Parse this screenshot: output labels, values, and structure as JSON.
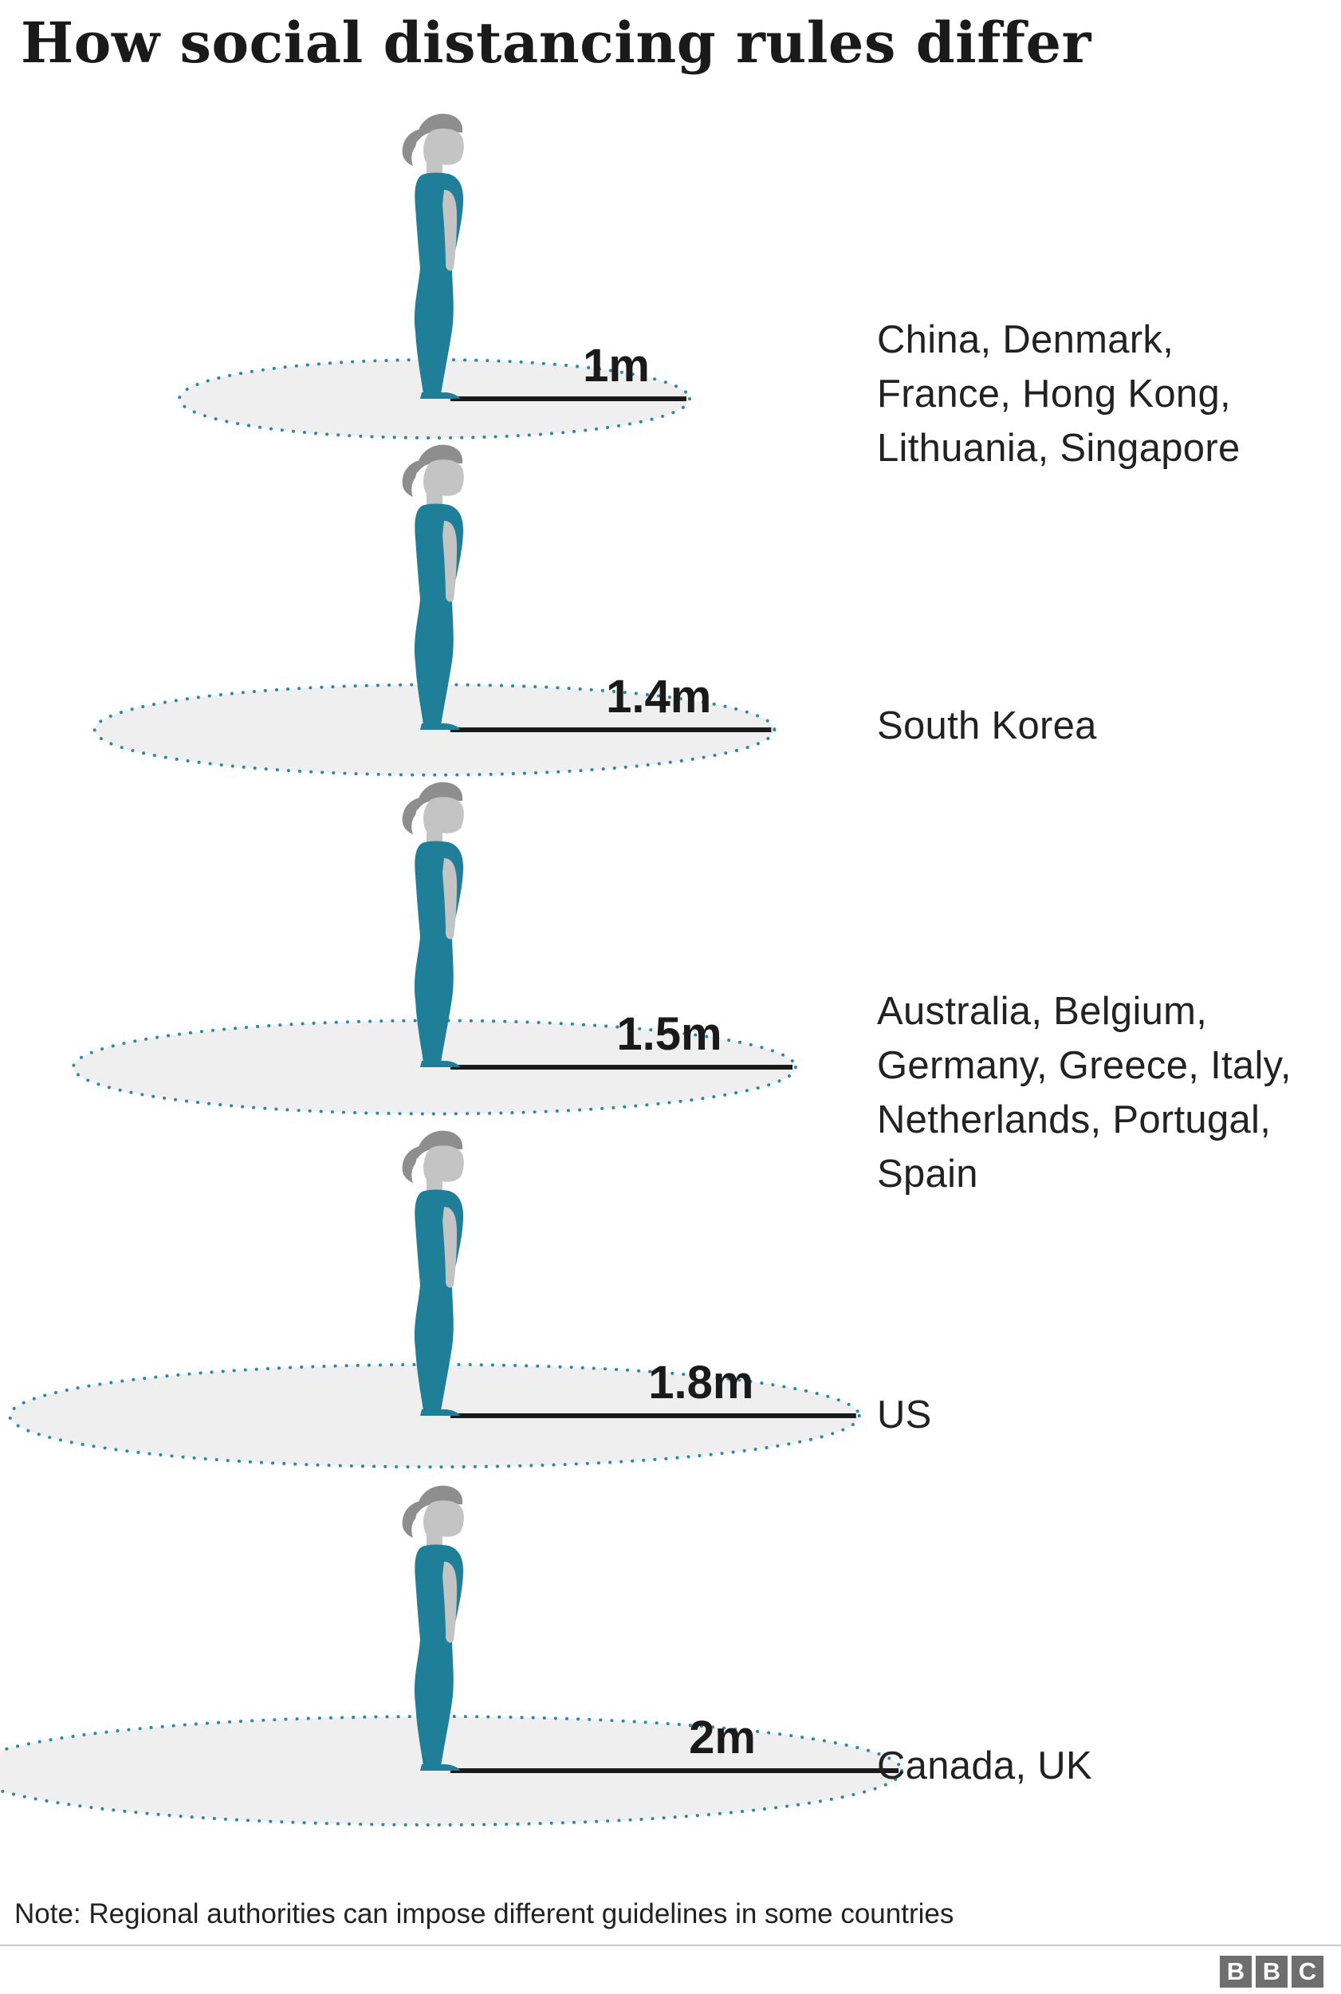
{
  "title": "How social distancing rules differ",
  "colors": {
    "figure": "#1f7f99",
    "hair": "#8e8e8e",
    "skin": "#c4c4c4",
    "circle_fill": "#efefef",
    "circle_dots": "#2e89a6",
    "line": "#1a1a1a"
  },
  "icons": [
    "standing-person-icon"
  ],
  "rules": [
    {
      "distance": "1m",
      "meters": 1.0,
      "countries": [
        "China, Denmark,",
        "France, Hong Kong,",
        "Lithuania, Singapore"
      ]
    },
    {
      "distance": "1.4m",
      "meters": 1.4,
      "countries": [
        "South Korea"
      ]
    },
    {
      "distance": "1.5m",
      "meters": 1.5,
      "countries": [
        "Australia, Belgium,",
        "Germany, Greece, Italy,",
        "Netherlands, Portugal,",
        "Spain"
      ]
    },
    {
      "distance": "1.8m",
      "meters": 1.8,
      "countries": [
        "US"
      ]
    },
    {
      "distance": "2m",
      "meters": 2.0,
      "countries": [
        "Canada, UK"
      ]
    }
  ],
  "note": "Note: Regional authorities can impose different guidelines in some countries",
  "logo": [
    "B",
    "B",
    "C"
  ]
}
